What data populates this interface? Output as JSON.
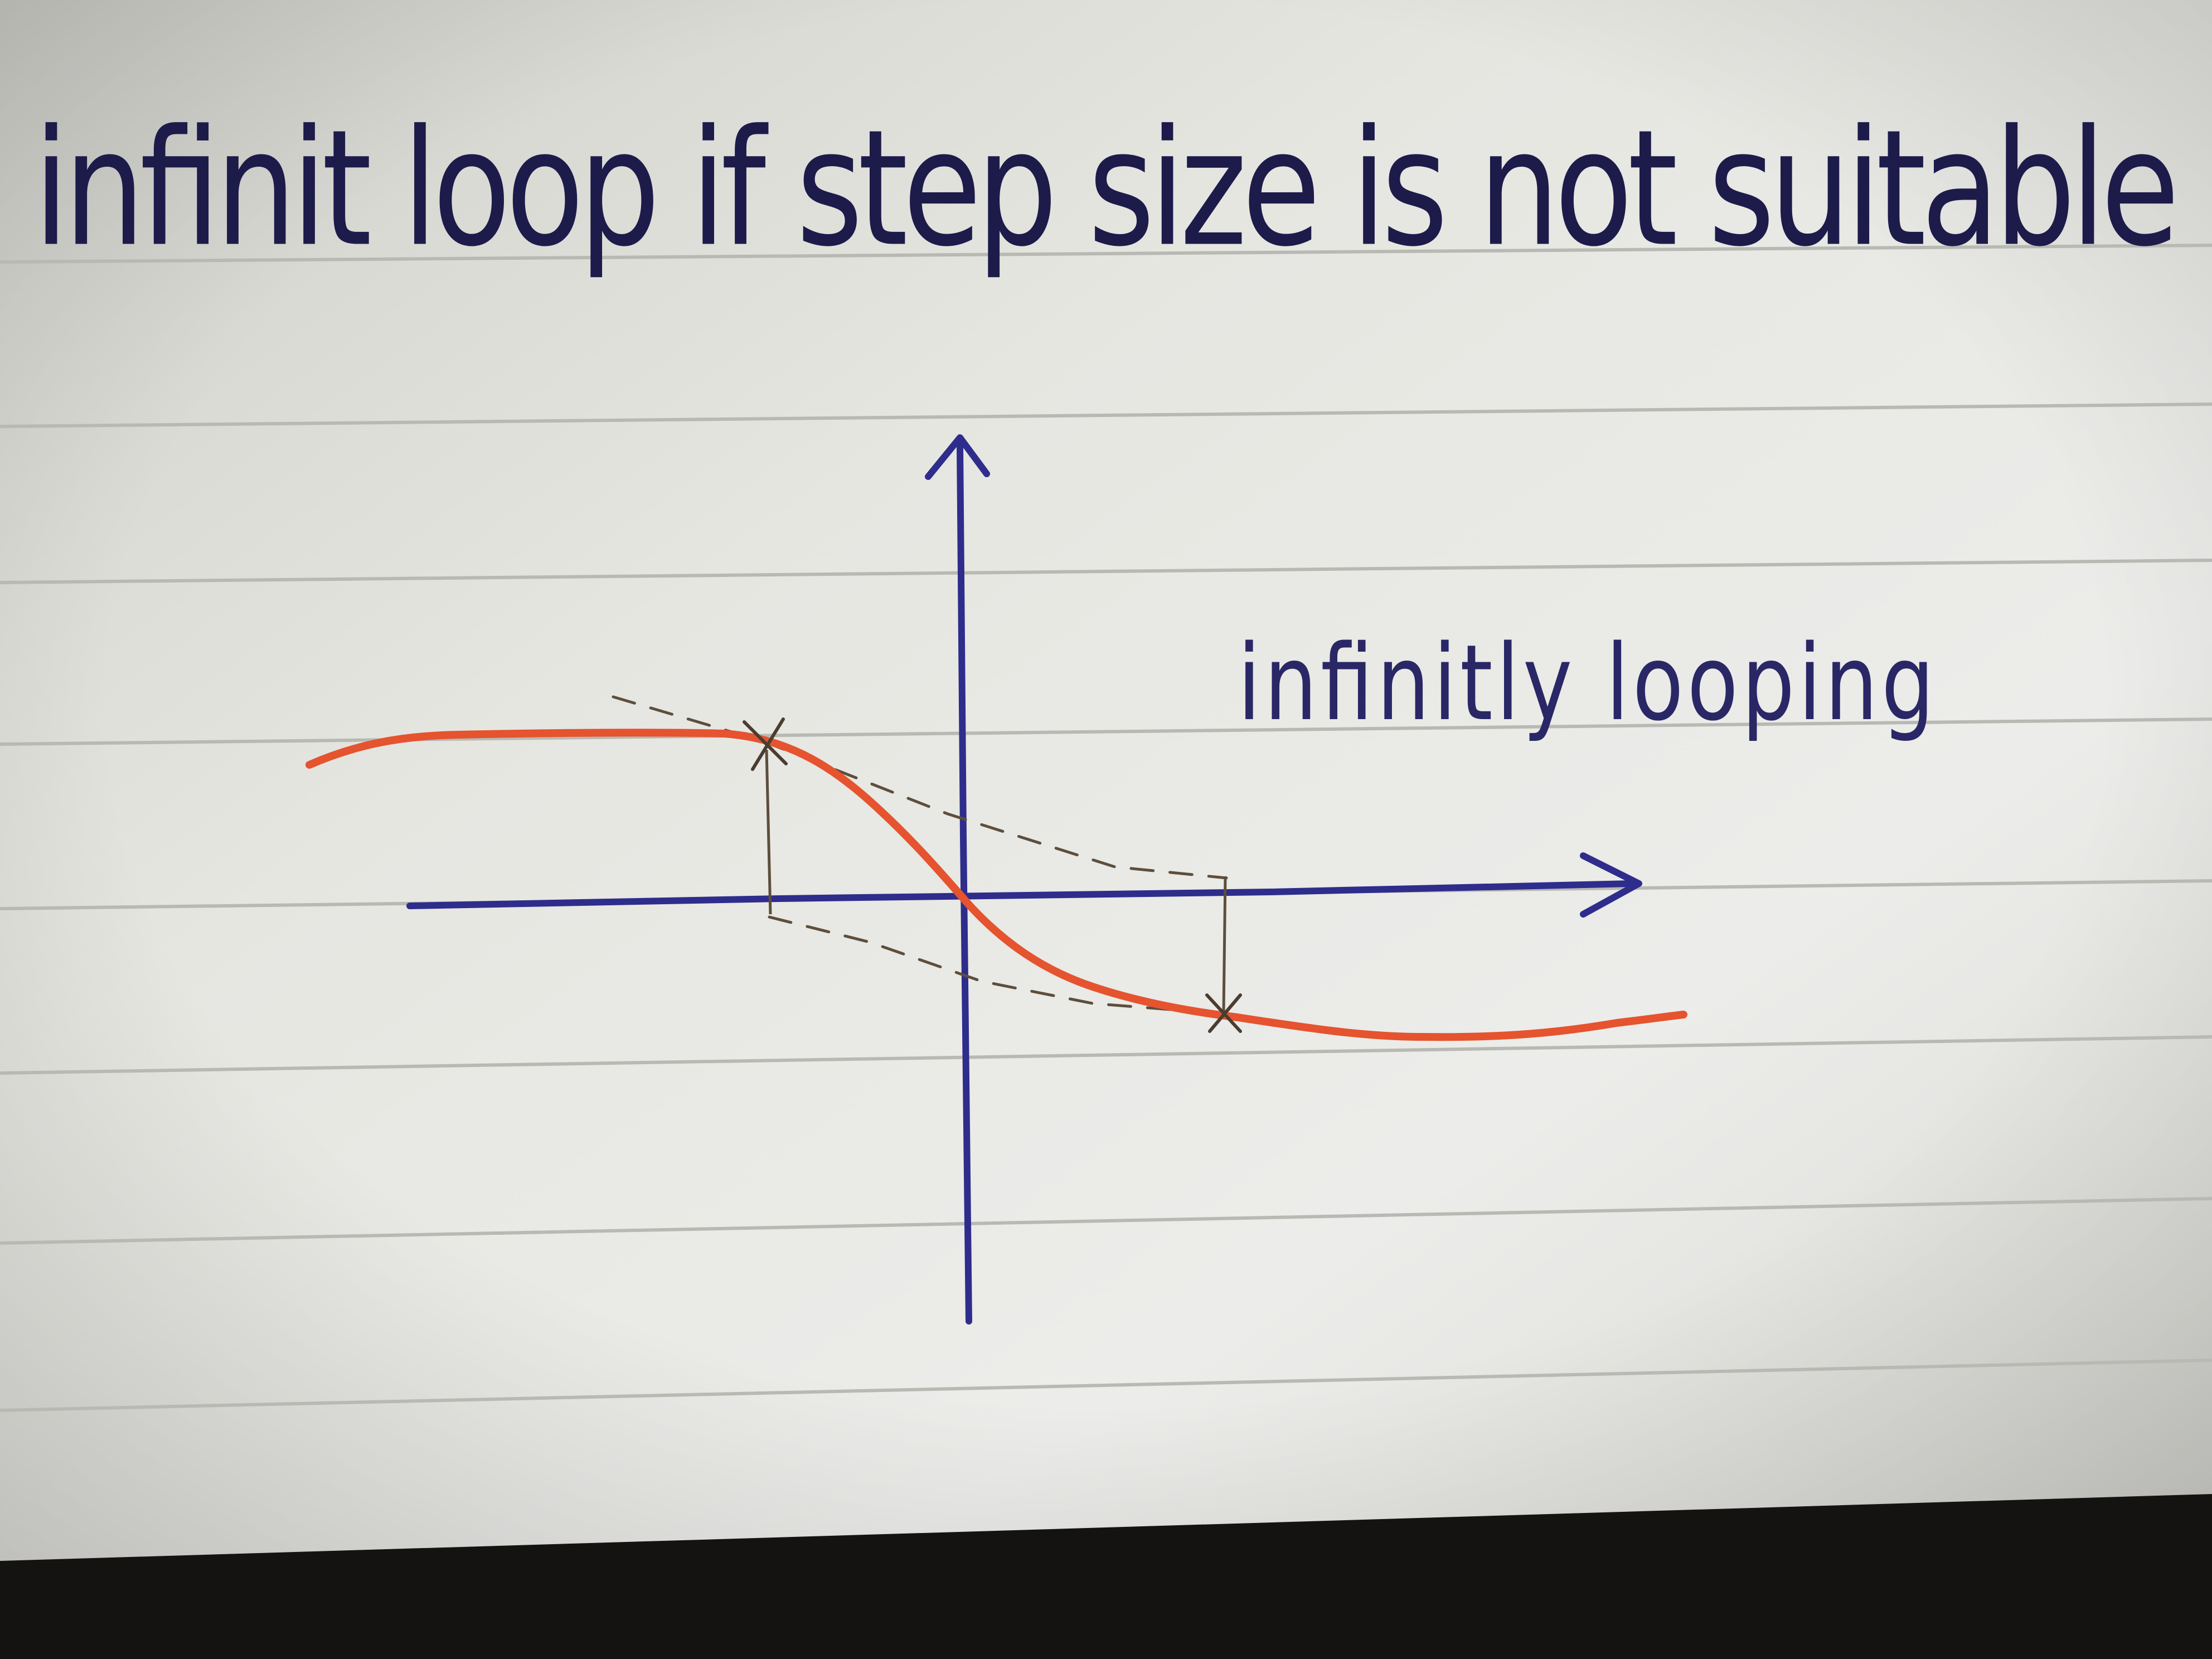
{
  "title": "infinit loop if step size is not suitable",
  "annotation": "infinitly looping",
  "colors": {
    "paper": "#e9e9e4",
    "rule_line": "#b7b7b2",
    "ink": "#1d1b4a",
    "axis": "#2e2d8c",
    "curve": "#e5532f",
    "pencil": "#5d4e3c",
    "bezel": "#141312"
  },
  "icons": {
    "x_axis_arrow": "arrow-right-icon",
    "y_axis_arrow": "arrow-up-icon",
    "iterate_marker": "cross-icon"
  }
}
